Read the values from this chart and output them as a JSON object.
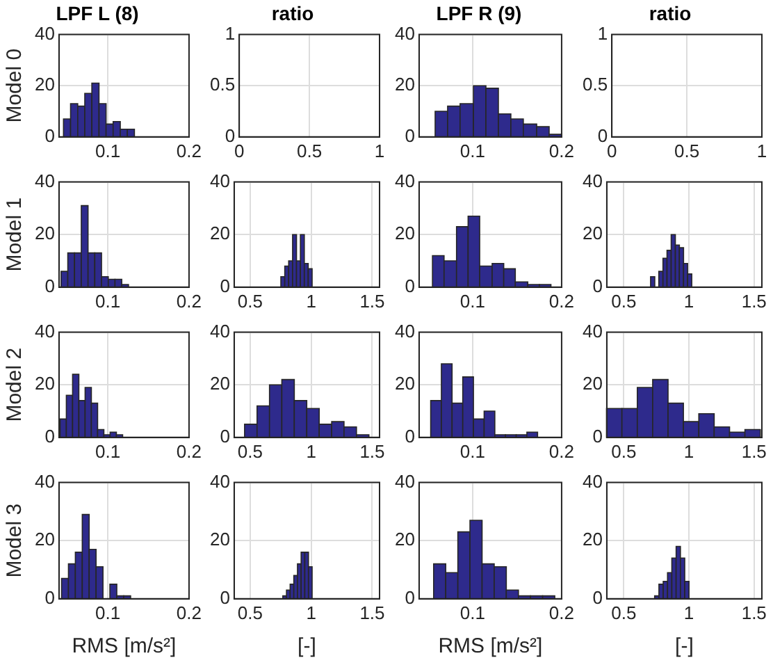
{
  "chart_data": [
    {
      "type": "histogram",
      "title": "LPF L (8)",
      "ylabel": "Model 0",
      "bins": [
        0.0455,
        0.0542,
        0.063,
        0.0717,
        0.0804,
        0.0892,
        0.0979,
        0.1066,
        0.1154,
        0.1241,
        0.1328
      ],
      "values": [
        7,
        13,
        12,
        17,
        21,
        13,
        5,
        6,
        3,
        3
      ],
      "color": "#2e2a8c",
      "xlim": [
        0.04,
        0.2
      ],
      "xticks": [
        0.1,
        0.2
      ],
      "ylim": [
        0,
        40
      ],
      "yticks": [
        0,
        20,
        40
      ],
      "grid": true
    },
    {
      "type": "histogram",
      "title": "ratio",
      "xlim": [
        0,
        1
      ],
      "xticks": [
        0,
        0.5,
        1
      ],
      "ylim": [
        0,
        1
      ],
      "yticks": [
        0,
        0.5,
        1
      ],
      "grid": true
    },
    {
      "type": "histogram",
      "title": "LPF R (9)",
      "bins": [
        0.058,
        0.072,
        0.086,
        0.101,
        0.115,
        0.129,
        0.143,
        0.157,
        0.172,
        0.186,
        0.2
      ],
      "values": [
        10,
        12,
        13,
        20,
        19,
        9,
        7,
        5,
        4,
        1
      ],
      "color": "#2e2a8c",
      "xlim": [
        0.04,
        0.2
      ],
      "xticks": [
        0.1,
        0.2
      ],
      "ylim": [
        0,
        40
      ],
      "yticks": [
        0,
        20,
        40
      ],
      "grid": true
    },
    {
      "type": "histogram",
      "title": "ratio",
      "xlim": [
        0,
        1
      ],
      "xticks": [
        0,
        0.5,
        1
      ],
      "ylim": [
        0,
        1
      ],
      "yticks": [
        0,
        0.5,
        1
      ],
      "grid": true
    },
    {
      "type": "histogram",
      "ylabel": "Model 1",
      "bins": [
        0.0425,
        0.0508,
        0.0591,
        0.0674,
        0.0757,
        0.084,
        0.0923,
        0.1006,
        0.1089,
        0.1172,
        0.1255
      ],
      "values": [
        6,
        13,
        13,
        31,
        13,
        13,
        4,
        3,
        3,
        1
      ],
      "color": "#2e2a8c",
      "xlim": [
        0.04,
        0.2
      ],
      "xticks": [
        0.1,
        0.2
      ],
      "ylim": [
        0,
        40
      ],
      "yticks": [
        0,
        20,
        40
      ],
      "grid": true
    },
    {
      "type": "histogram",
      "bins": [
        0.752,
        0.784,
        0.816,
        0.848,
        0.88,
        0.912,
        0.944,
        0.976,
        1.008
      ],
      "values": [
        4,
        8,
        10,
        20,
        10,
        20,
        9,
        7
      ],
      "color": "#2e2a8c",
      "xlim": [
        0.37,
        1.56
      ],
      "xticks": [
        0.5,
        1,
        1.5
      ],
      "ylim": [
        0,
        40
      ],
      "yticks": [
        0,
        20,
        40
      ],
      "grid": true
    },
    {
      "type": "histogram",
      "bins": [
        0.055,
        0.068,
        0.082,
        0.095,
        0.108,
        0.122,
        0.135,
        0.148,
        0.162,
        0.175,
        0.188
      ],
      "values": [
        12,
        10,
        23,
        27,
        8,
        9,
        7,
        2,
        1,
        1
      ],
      "color": "#2e2a8c",
      "xlim": [
        0.04,
        0.2
      ],
      "xticks": [
        0.1,
        0.2
      ],
      "ylim": [
        0,
        40
      ],
      "yticks": [
        0,
        20,
        40
      ],
      "grid": true
    },
    {
      "type": "histogram",
      "bins": [
        0.706,
        0.738,
        0.769,
        0.801,
        0.832,
        0.864,
        0.896,
        0.927,
        0.959,
        0.99,
        1.022
      ],
      "values": [
        4,
        0,
        6,
        11,
        14,
        20,
        16,
        15,
        9,
        5
      ],
      "color": "#2e2a8c",
      "xlim": [
        0.37,
        1.56
      ],
      "xticks": [
        0.5,
        1,
        1.5
      ],
      "ylim": [
        0,
        40
      ],
      "yticks": [
        0,
        20,
        40
      ],
      "grid": true
    },
    {
      "type": "histogram",
      "ylabel": "Model 2",
      "bins": [
        0.0413,
        0.049,
        0.0567,
        0.0644,
        0.0721,
        0.0798,
        0.0875,
        0.0952,
        0.1029,
        0.1106,
        0.1183
      ],
      "values": [
        7,
        16,
        24,
        14,
        19,
        13,
        3,
        1,
        2,
        1
      ],
      "color": "#2e2a8c",
      "xlim": [
        0.04,
        0.2
      ],
      "xticks": [
        0.1,
        0.2
      ],
      "ylim": [
        0,
        40
      ],
      "yticks": [
        0,
        20,
        40
      ],
      "grid": true
    },
    {
      "type": "histogram",
      "bins": [
        0.455,
        0.557,
        0.659,
        0.76,
        0.862,
        0.964,
        1.066,
        1.168,
        1.269,
        1.371,
        1.473
      ],
      "values": [
        5,
        12,
        20,
        22,
        14,
        11,
        5,
        6,
        4,
        1
      ],
      "color": "#2e2a8c",
      "xlim": [
        0.37,
        1.56
      ],
      "xticks": [
        0.5,
        1,
        1.5
      ],
      "ylim": [
        0,
        40
      ],
      "yticks": [
        0,
        20,
        40
      ],
      "grid": true
    },
    {
      "type": "histogram",
      "bins": [
        0.053,
        0.065,
        0.077,
        0.089,
        0.101,
        0.113,
        0.125,
        0.137,
        0.149,
        0.161,
        0.173
      ],
      "values": [
        14,
        28,
        13,
        23,
        7,
        10,
        1,
        1,
        1,
        2
      ],
      "color": "#2e2a8c",
      "xlim": [
        0.04,
        0.2
      ],
      "xticks": [
        0.1,
        0.2
      ],
      "ylim": [
        0,
        40
      ],
      "yticks": [
        0,
        20,
        40
      ],
      "grid": true
    },
    {
      "type": "histogram",
      "bins": [
        0.368,
        0.486,
        0.604,
        0.722,
        0.84,
        0.958,
        1.076,
        1.194,
        1.312,
        1.43,
        1.548
      ],
      "values": [
        11,
        11,
        19,
        22,
        13,
        6,
        9,
        4,
        2,
        3
      ],
      "color": "#2e2a8c",
      "xlim": [
        0.37,
        1.56
      ],
      "xticks": [
        0.5,
        1,
        1.5
      ],
      "ylim": [
        0,
        40
      ],
      "yticks": [
        0,
        20,
        40
      ],
      "grid": true
    },
    {
      "type": "histogram",
      "ylabel": "Model 3",
      "xlabel": "RMS [m/s²]",
      "bins": [
        0.0431,
        0.0516,
        0.0601,
        0.0686,
        0.0771,
        0.0856,
        0.0941,
        0.1026,
        0.1111,
        0.1196,
        0.1281
      ],
      "values": [
        7,
        12,
        16,
        29,
        17,
        11,
        0,
        5,
        1,
        1
      ],
      "color": "#2e2a8c",
      "xlim": [
        0.04,
        0.2
      ],
      "xticks": [
        0.1,
        0.2
      ],
      "ylim": [
        0,
        40
      ],
      "yticks": [
        0,
        20,
        40
      ],
      "grid": true
    },
    {
      "type": "histogram",
      "xlabel": "[-]",
      "bins": [
        0.768,
        0.798,
        0.828,
        0.858,
        0.888,
        0.918,
        0.948,
        0.978,
        1.008
      ],
      "values": [
        1,
        3,
        5,
        8,
        12,
        16,
        16,
        11
      ],
      "color": "#2e2a8c",
      "xlim": [
        0.37,
        1.56
      ],
      "xticks": [
        0.5,
        1,
        1.5
      ],
      "ylim": [
        0,
        40
      ],
      "yticks": [
        0,
        20,
        40
      ],
      "grid": true
    },
    {
      "type": "histogram",
      "xlabel": "RMS [m/s²]",
      "bins": [
        0.0563,
        0.0699,
        0.0835,
        0.0971,
        0.1107,
        0.1243,
        0.1379,
        0.1515,
        0.1651,
        0.1787,
        0.1923
      ],
      "values": [
        12,
        9,
        23,
        27,
        12,
        11,
        3,
        1,
        1,
        1
      ],
      "color": "#2e2a8c",
      "xlim": [
        0.04,
        0.2
      ],
      "xticks": [
        0.1,
        0.2
      ],
      "ylim": [
        0,
        40
      ],
      "yticks": [
        0,
        20,
        40
      ],
      "grid": true
    },
    {
      "type": "histogram",
      "xlabel": "[-]",
      "bins": [
        0.737,
        0.77,
        0.803,
        0.836,
        0.869,
        0.902,
        0.935,
        0.968,
        1.001
      ],
      "values": [
        1,
        5,
        6,
        9,
        14,
        18,
        14,
        6
      ],
      "color": "#2e2a8c",
      "xlim": [
        0.37,
        1.56
      ],
      "xticks": [
        0.5,
        1,
        1.5
      ],
      "ylim": [
        0,
        40
      ],
      "yticks": [
        0,
        20,
        40
      ],
      "grid": true
    }
  ]
}
